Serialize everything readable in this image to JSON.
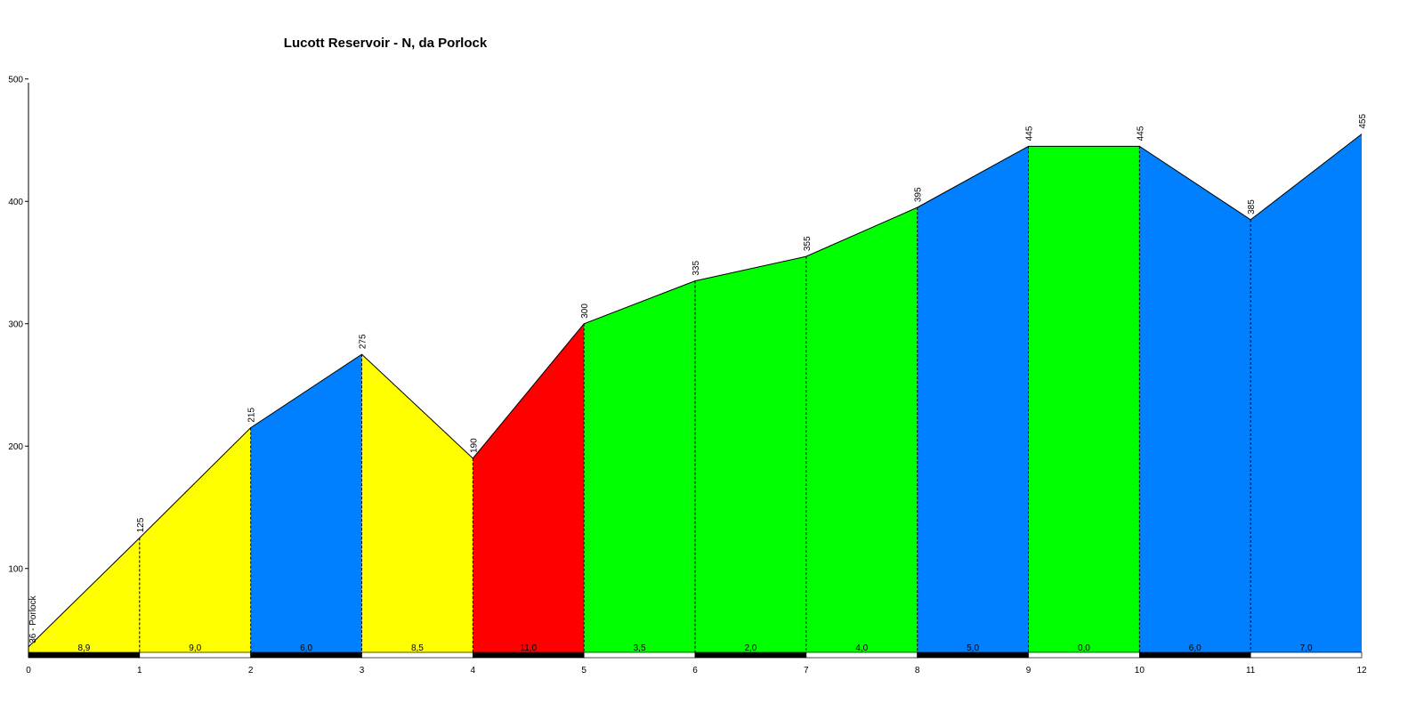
{
  "chart_data": {
    "type": "area",
    "title": "Lucott Reservoir - N, da Porlock",
    "xlabel": "",
    "ylabel": "",
    "xlim": [
      0,
      12
    ],
    "ylim": [
      30,
      500
    ],
    "x_ticks": [
      "0",
      "1",
      "2",
      "3",
      "4",
      "5",
      "6",
      "7",
      "8",
      "9",
      "10",
      "11",
      "12"
    ],
    "y_ticks": [
      "100",
      "200",
      "300",
      "400",
      "500"
    ],
    "grid": false,
    "start_label": "36 - Porlock",
    "points": [
      {
        "x": 0,
        "y": 36,
        "label": ""
      },
      {
        "x": 1,
        "y": 125,
        "label": "125"
      },
      {
        "x": 2,
        "y": 215,
        "label": "215"
      },
      {
        "x": 3,
        "y": 275,
        "label": "275"
      },
      {
        "x": 4,
        "y": 190,
        "label": "190"
      },
      {
        "x": 5,
        "y": 300,
        "label": "300"
      },
      {
        "x": 6,
        "y": 335,
        "label": "335"
      },
      {
        "x": 7,
        "y": 355,
        "label": "355"
      },
      {
        "x": 8,
        "y": 395,
        "label": "395"
      },
      {
        "x": 9,
        "y": 445,
        "label": "445"
      },
      {
        "x": 10,
        "y": 445,
        "label": "445"
      },
      {
        "x": 11,
        "y": 385,
        "label": "385"
      },
      {
        "x": 12,
        "y": 455,
        "label": "455"
      }
    ],
    "segments": [
      {
        "from": 0,
        "to": 1,
        "gradient": "8,9",
        "color": "#ffff00"
      },
      {
        "from": 1,
        "to": 2,
        "gradient": "9,0",
        "color": "#ffff00"
      },
      {
        "from": 2,
        "to": 3,
        "gradient": "6,0",
        "color": "#0080ff"
      },
      {
        "from": 3,
        "to": 4,
        "gradient": "8,5",
        "color": "#ffff00"
      },
      {
        "from": 4,
        "to": 5,
        "gradient": "11,0",
        "color": "#ff0000"
      },
      {
        "from": 5,
        "to": 6,
        "gradient": "3,5",
        "color": "#00ff00"
      },
      {
        "from": 6,
        "to": 7,
        "gradient": "2,0",
        "color": "#00ff00"
      },
      {
        "from": 7,
        "to": 8,
        "gradient": "4,0",
        "color": "#00ff00"
      },
      {
        "from": 8,
        "to": 9,
        "gradient": "5,0",
        "color": "#0080ff"
      },
      {
        "from": 9,
        "to": 10,
        "gradient": "0,0",
        "color": "#00ff00"
      },
      {
        "from": 10,
        "to": 11,
        "gradient": "6,0",
        "color": "#0080ff"
      },
      {
        "from": 11,
        "to": 12,
        "gradient": "7,0",
        "color": "#0080ff"
      }
    ]
  }
}
